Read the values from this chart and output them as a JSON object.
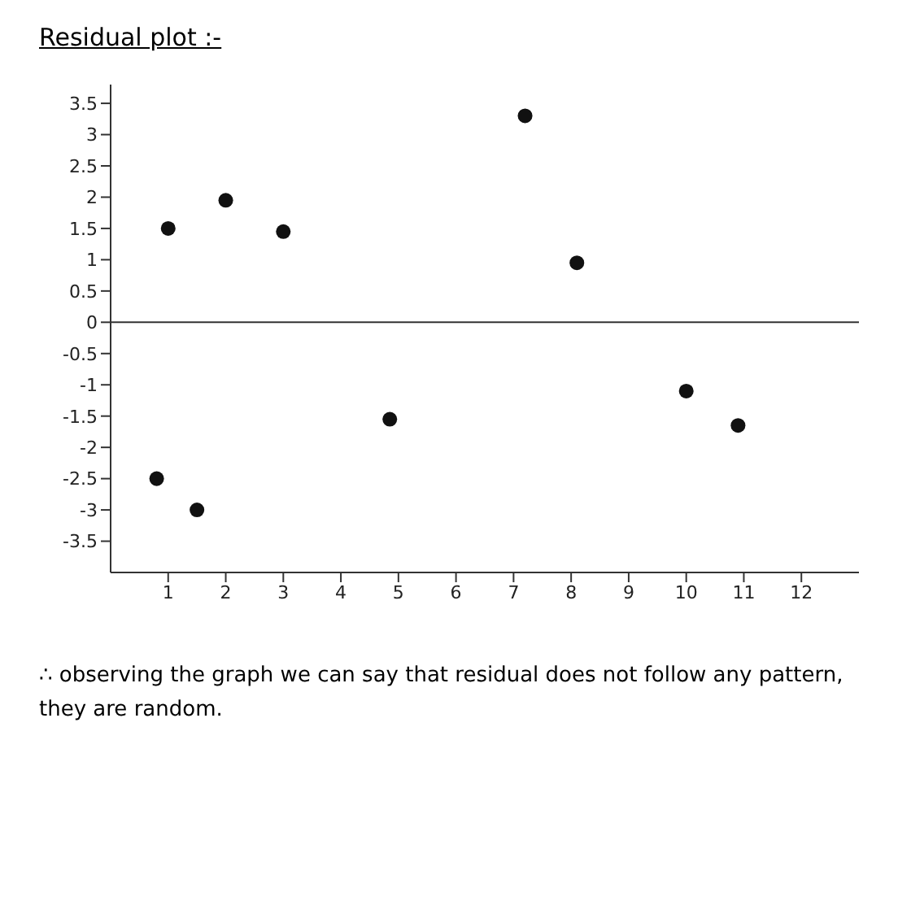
{
  "chart_data": {
    "type": "scatter",
    "title": "Residual plot :-",
    "x": [
      1,
      2,
      3,
      7.2,
      8.1,
      0.8,
      1.5,
      4.85,
      10,
      10.9
    ],
    "series": [
      {
        "color": "#111111",
        "values": [
          1.5,
          1.95,
          1.45,
          3.3,
          0.95,
          -2.5,
          -3,
          -1.55,
          -1.1,
          -1.65
        ]
      }
    ],
    "xlim": [
      0,
      13
    ],
    "xticks": [
      1,
      2,
      3,
      4,
      5,
      6,
      7,
      8,
      9,
      10,
      11,
      12
    ],
    "ylim": [
      -4,
      3.8
    ],
    "yticks": [
      -3.5,
      -3,
      -2.5,
      -2,
      -1.5,
      -1,
      -0.5,
      0,
      0.5,
      1,
      1.5,
      2,
      2.5,
      3,
      3.5
    ],
    "ref_lines": [
      {
        "axis": "y",
        "value": 0,
        "color": "#333333"
      }
    ],
    "grid": false,
    "legend": false,
    "marker": "circle",
    "annotations": [
      "∴ observing the graph we can say that residual does not follow any pattern, they are random."
    ]
  }
}
